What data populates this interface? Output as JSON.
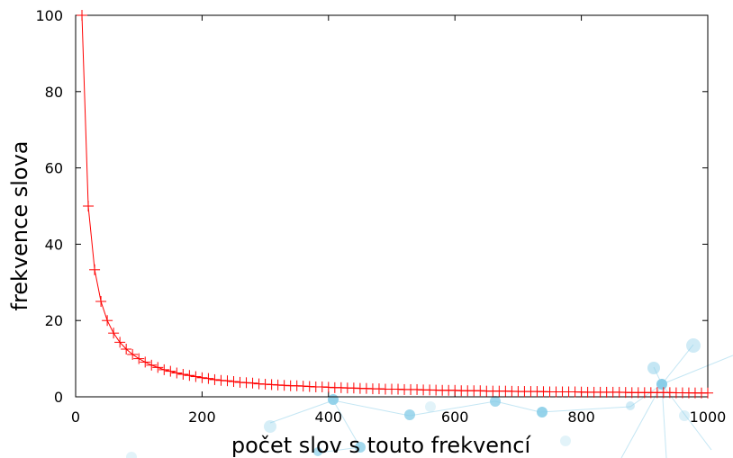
{
  "chart_data": {
    "type": "line",
    "title": "",
    "xlabel": "počet slov s touto frekvencí",
    "ylabel": "frekvence slova",
    "xlim": [
      0,
      1000
    ],
    "ylim": [
      0,
      100
    ],
    "x_ticks": [
      0,
      200,
      400,
      600,
      800,
      1000
    ],
    "y_ticks": [
      0,
      20,
      40,
      60,
      80,
      100
    ],
    "grid": false,
    "legend": "none",
    "series": [
      {
        "marker": "plus",
        "color": "#ff0000",
        "function": "y = 1000 / x",
        "x": [
          10,
          20,
          30,
          40,
          50,
          60,
          70,
          80,
          90,
          100,
          110,
          120,
          130,
          140,
          150,
          160,
          170,
          180,
          190,
          200,
          210,
          220,
          230,
          240,
          250,
          260,
          270,
          280,
          290,
          300,
          310,
          320,
          330,
          340,
          350,
          360,
          370,
          380,
          390,
          400,
          410,
          420,
          430,
          440,
          450,
          460,
          470,
          480,
          490,
          500,
          510,
          520,
          530,
          540,
          550,
          560,
          570,
          580,
          590,
          600,
          610,
          620,
          630,
          640,
          650,
          660,
          670,
          680,
          690,
          700,
          710,
          720,
          730,
          740,
          750,
          760,
          770,
          780,
          790,
          800,
          810,
          820,
          830,
          840,
          850,
          860,
          870,
          880,
          890,
          900,
          910,
          920,
          930,
          940,
          950,
          960,
          970,
          980,
          990,
          1000
        ],
        "y": [
          100,
          50,
          33.3,
          25,
          20,
          16.7,
          14.3,
          12.5,
          11.1,
          10,
          9.1,
          8.3,
          7.7,
          7.1,
          6.7,
          6.25,
          5.9,
          5.6,
          5.3,
          5,
          4.8,
          4.5,
          4.3,
          4.2,
          4,
          3.8,
          3.7,
          3.6,
          3.4,
          3.3,
          3.2,
          3.1,
          3,
          2.9,
          2.9,
          2.8,
          2.7,
          2.6,
          2.6,
          2.5,
          2.4,
          2.4,
          2.3,
          2.3,
          2.2,
          2.2,
          2.1,
          2.1,
          2,
          2,
          2,
          1.9,
          1.9,
          1.9,
          1.8,
          1.8,
          1.75,
          1.7,
          1.7,
          1.7,
          1.6,
          1.6,
          1.6,
          1.6,
          1.5,
          1.5,
          1.5,
          1.5,
          1.45,
          1.4,
          1.4,
          1.4,
          1.4,
          1.35,
          1.3,
          1.3,
          1.3,
          1.3,
          1.3,
          1.25,
          1.2,
          1.2,
          1.2,
          1.2,
          1.2,
          1.2,
          1.15,
          1.1,
          1.1,
          1.1,
          1.1,
          1.1,
          1.1,
          1.1,
          1.05,
          1.05,
          1.03,
          1.02,
          1.01,
          1
        ]
      }
    ]
  },
  "watermark": {
    "description_color": "#2aa6d6"
  }
}
